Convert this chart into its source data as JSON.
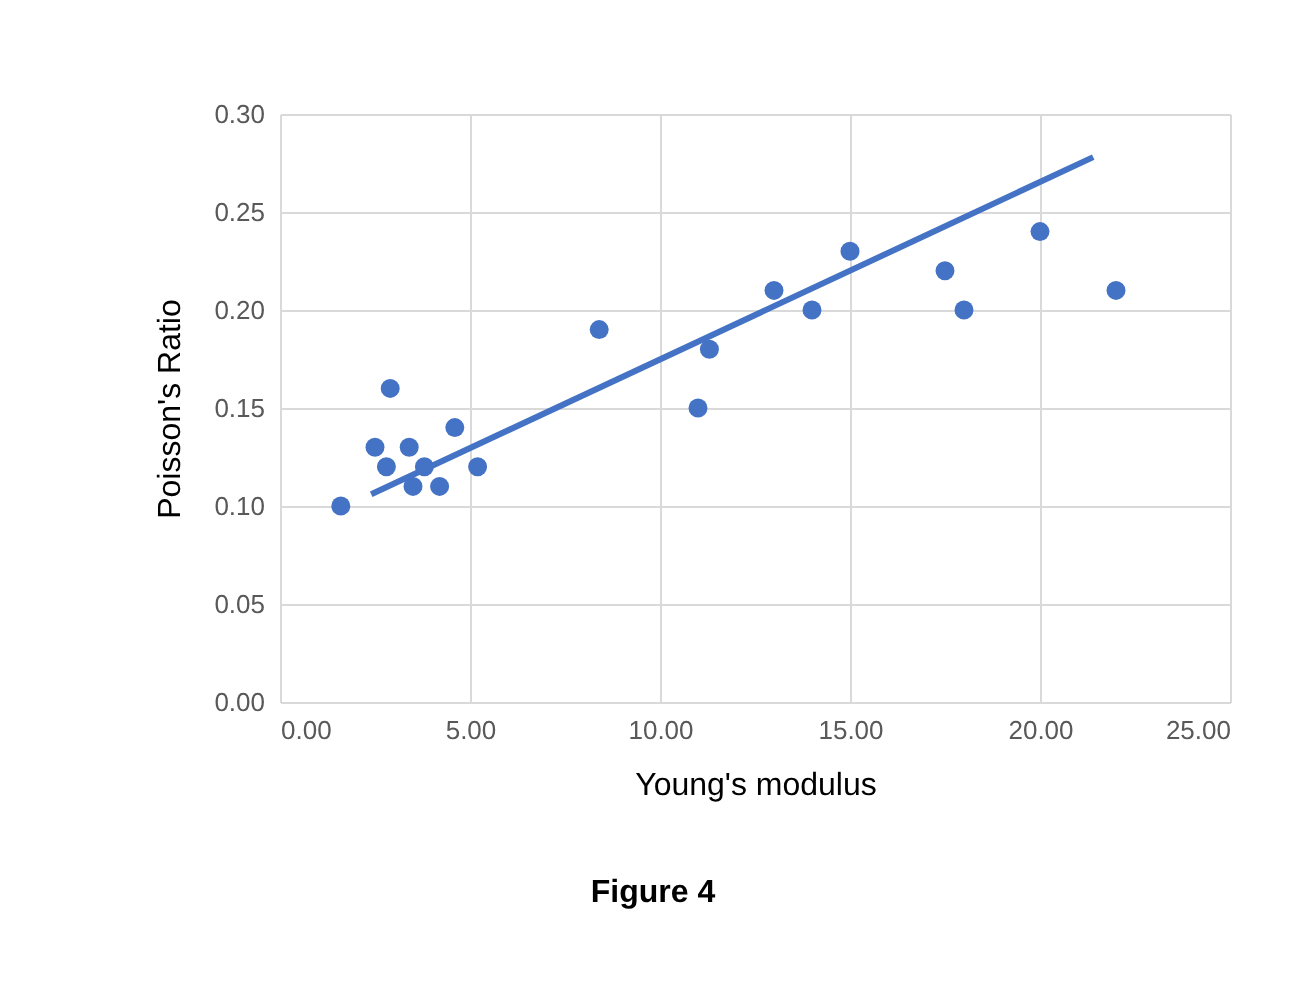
{
  "chart_data": {
    "type": "scatter",
    "xlabel": "Young's modulus",
    "ylabel": "Poisson's Ratio",
    "annotations": [
      "Figure 4"
    ],
    "xlim": [
      0,
      25
    ],
    "ylim": [
      0,
      0.3
    ],
    "xticks": [
      {
        "value": 0,
        "label": "0.00"
      },
      {
        "value": 5,
        "label": "5.00"
      },
      {
        "value": 10,
        "label": "10.00"
      },
      {
        "value": 15,
        "label": "15.00"
      },
      {
        "value": 20,
        "label": "20.00"
      },
      {
        "value": 25,
        "label": "25.00"
      }
    ],
    "yticks": [
      {
        "value": 0,
        "label": "0.00"
      },
      {
        "value": 0.05,
        "label": "0.05"
      },
      {
        "value": 0.1,
        "label": "0.10"
      },
      {
        "value": 0.15,
        "label": "0.15"
      },
      {
        "value": 0.2,
        "label": "0.20"
      },
      {
        "value": 0.25,
        "label": "0.25"
      },
      {
        "value": 0.3,
        "label": "0.30"
      }
    ],
    "grid": true,
    "marker": "circle",
    "series": [
      {
        "color": "#4472c4",
        "x": [
          1.6,
          2.5,
          2.8,
          2.9,
          3.4,
          3.5,
          3.8,
          4.2,
          4.6,
          5.2,
          8.4,
          11.0,
          11.3,
          13.0,
          14.0,
          15.0,
          17.5,
          18.0,
          20.0,
          22.0
        ],
        "values": [
          0.1,
          0.13,
          0.12,
          0.16,
          0.13,
          0.11,
          0.12,
          0.11,
          0.14,
          0.12,
          0.19,
          0.15,
          0.18,
          0.21,
          0.2,
          0.23,
          0.22,
          0.2,
          0.24,
          0.21
        ]
      },
      {
        "type": "line",
        "color": "#4472c4",
        "line_style": "solid",
        "marker": "none",
        "x": [
          2.4,
          21.4
        ],
        "values": [
          0.106,
          0.278
        ]
      }
    ]
  }
}
